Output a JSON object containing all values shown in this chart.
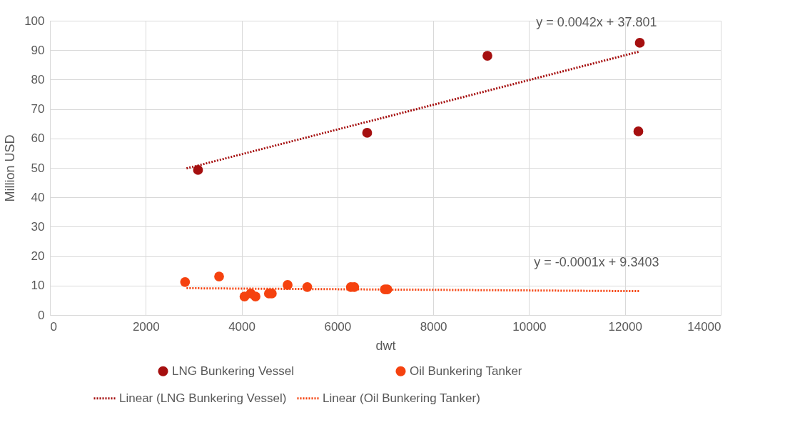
{
  "chart_data": {
    "type": "scatter",
    "xlabel": "dwt",
    "ylabel": "Million USD",
    "xlim": [
      0,
      14000
    ],
    "xticks": [
      0,
      2000,
      4000,
      6000,
      8000,
      10000,
      12000,
      14000
    ],
    "ylim": [
      0,
      100
    ],
    "yticks": [
      0,
      10,
      20,
      30,
      40,
      50,
      60,
      70,
      80,
      90,
      100
    ],
    "grid": true,
    "legend": "bottom",
    "marker": "circle",
    "series": [
      {
        "name": "LNG Bunkering Vessel",
        "color": "#a50f0f",
        "x": [
          3090,
          6620,
          9130,
          12280,
          12310
        ],
        "values": [
          49.3,
          61.9,
          88.1,
          62.4,
          92.5
        ]
      },
      {
        "name": "Oil Bunkering Tanker",
        "color": "#f5420f",
        "x": [
          2820,
          3530,
          4060,
          4190,
          4290,
          4570,
          4630,
          4960,
          5370,
          6280,
          6350,
          6990,
          7040
        ],
        "values": [
          11.2,
          13.1,
          6.3,
          7.3,
          6.3,
          7.3,
          7.3,
          10.2,
          9.5,
          9.5,
          9.5,
          8.7,
          8.7
        ]
      },
      {
        "name": "Linear (LNG Bunkering Vessel)",
        "type": "line",
        "marker": "none",
        "line_style": "dotted",
        "color": "#a50f0f",
        "x": [
          2850,
          12300
        ],
        "values": [
          49.8,
          89.5
        ]
      },
      {
        "name": "Linear (Oil Bunkering Tanker)",
        "type": "line",
        "marker": "none",
        "line_style": "dotted",
        "color": "#f5420f",
        "x": [
          2850,
          12300
        ],
        "values": [
          9.1,
          8.1
        ]
      }
    ],
    "annotations": [
      "y = 0.0042x + 37.801",
      "y = -0.0001x + 9.3403"
    ]
  }
}
